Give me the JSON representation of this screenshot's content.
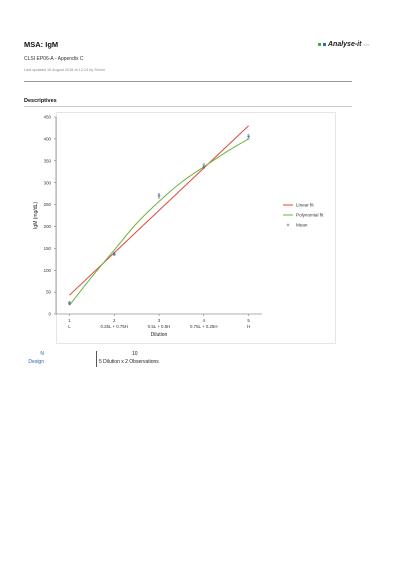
{
  "report": {
    "title": "MSA: IgM",
    "subtitle": "CLSI EP06-A - Appendix C",
    "updated": "Last updated 10 August 2018 at 12:14 by Simon",
    "logo": "Analyse-it",
    "logo_version": "5.10"
  },
  "section": {
    "title": "Descriptives"
  },
  "chart_data": {
    "type": "scatter",
    "ylabel": "IgM (mg/dL)",
    "xlabel": "Dilution",
    "xlim": [
      0.7,
      5.3
    ],
    "ylim": [
      0,
      450
    ],
    "x_ticks": [
      {
        "value": 1,
        "line1": "1",
        "line2": "L"
      },
      {
        "value": 2,
        "line1": "2",
        "line2": "0.25L + 0.75H"
      },
      {
        "value": 3,
        "line1": "3",
        "line2": "0.5L + 0.5H"
      },
      {
        "value": 4,
        "line1": "4",
        "line2": "0.75L + 0.25H"
      },
      {
        "value": 5,
        "line1": "5",
        "line2": "H"
      }
    ],
    "y_ticks": [
      0,
      50,
      100,
      150,
      200,
      250,
      300,
      350,
      400,
      450
    ],
    "series": [
      {
        "name": "Linear fit",
        "kind": "line",
        "color": "#e0453b",
        "x": [
          1,
          5
        ],
        "y": [
          43,
          430
        ]
      },
      {
        "name": "Polynomial fit",
        "kind": "curve",
        "color": "#6ab43a",
        "x": [
          1,
          1.5,
          2,
          2.5,
          3,
          3.5,
          4,
          4.5,
          5
        ],
        "y": [
          20,
          85,
          146,
          207,
          257,
          301,
          336,
          370,
          400
        ]
      },
      {
        "name": "Mean",
        "kind": "points",
        "color": "#3a5aa8",
        "x": [
          1,
          2,
          3,
          4,
          5
        ],
        "y": [
          25,
          137,
          270,
          338,
          405
        ]
      }
    ],
    "observations": [
      {
        "x": 1,
        "y": 23
      },
      {
        "x": 1,
        "y": 27
      },
      {
        "x": 2,
        "y": 135
      },
      {
        "x": 2,
        "y": 139
      },
      {
        "x": 3,
        "y": 266
      },
      {
        "x": 3,
        "y": 274
      },
      {
        "x": 4,
        "y": 334
      },
      {
        "x": 4,
        "y": 342
      },
      {
        "x": 5,
        "y": 401
      },
      {
        "x": 5,
        "y": 409
      }
    ],
    "legend_position": "right"
  },
  "summary": [
    {
      "label": "N",
      "value": "10"
    },
    {
      "label": "Design",
      "value": "5 Dilution x 2 Observations"
    }
  ]
}
